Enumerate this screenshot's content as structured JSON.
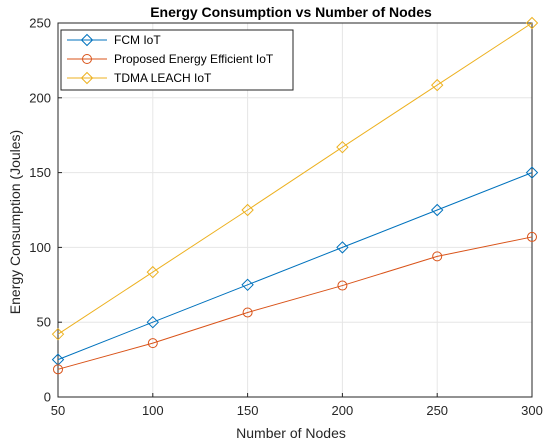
{
  "chart_data": {
    "type": "line",
    "title": "Energy Consumption vs Number of Nodes",
    "xlabel": "Number of Nodes",
    "ylabel": "Energy Consumption (Joules)",
    "x": [
      50,
      100,
      150,
      200,
      250,
      300
    ],
    "xlim": [
      50,
      300
    ],
    "ylim": [
      0,
      250
    ],
    "xticks": [
      50,
      100,
      150,
      200,
      250,
      300
    ],
    "yticks": [
      0,
      50,
      100,
      150,
      200,
      250
    ],
    "grid": true,
    "legend_position": "top-left",
    "series": [
      {
        "name": "FCM IoT",
        "values": [
          25,
          50,
          75,
          100,
          125,
          150
        ],
        "color": "#0072BD",
        "marker": "diamond"
      },
      {
        "name": "Proposed Energy Efficient IoT",
        "values": [
          18.5,
          36,
          56.5,
          74.5,
          94,
          107
        ],
        "color": "#D95319",
        "marker": "circle"
      },
      {
        "name": "TDMA LEACH IoT",
        "values": [
          42,
          83.5,
          125,
          167,
          208.5,
          250
        ],
        "color": "#EDB120",
        "marker": "diamond"
      }
    ]
  }
}
